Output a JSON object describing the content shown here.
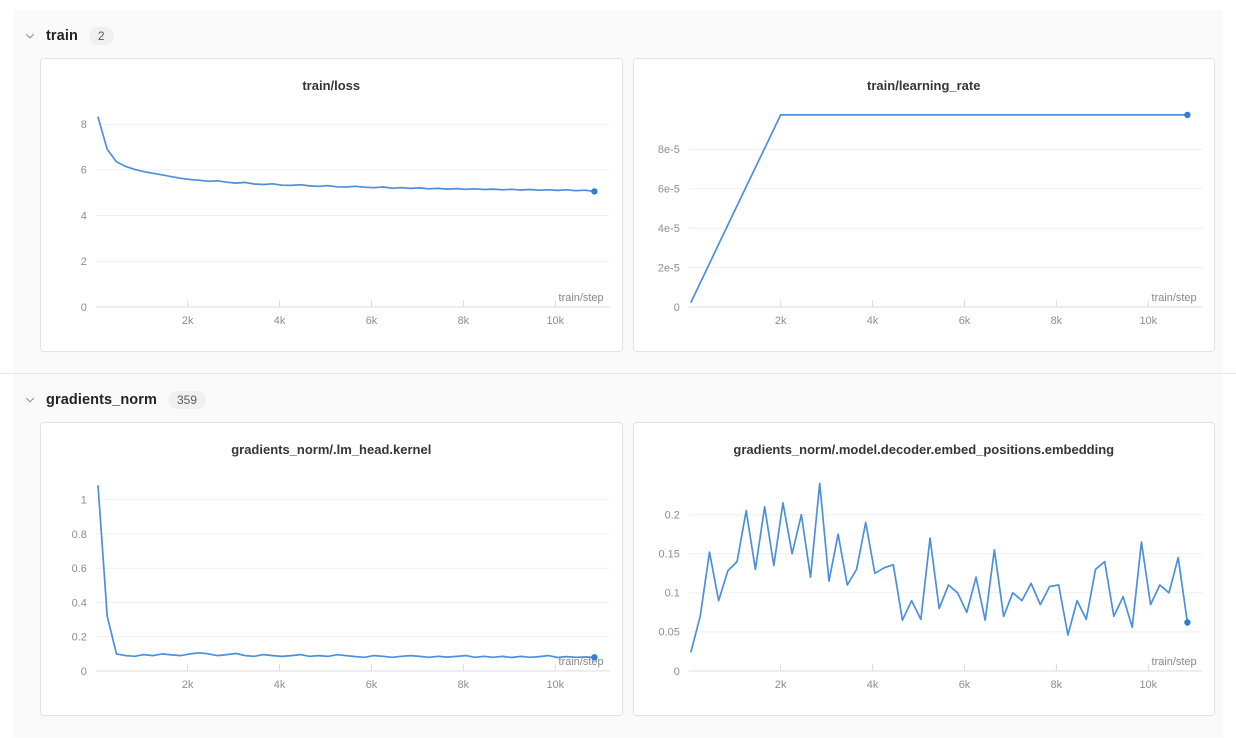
{
  "colors": {
    "line": "#4a90dc",
    "end_dot": "#2e7fd4",
    "section_background": "#fafafa",
    "card_background": "#ffffff"
  },
  "sections": [
    {
      "label": "train",
      "count": "2",
      "charts": [
        0,
        1
      ]
    },
    {
      "label": "gradients_norm",
      "count": "359",
      "charts": [
        2,
        3
      ]
    }
  ],
  "chart_data": [
    {
      "type": "line",
      "title": "train/loss",
      "xlabel": "train/step",
      "xlim": [
        0,
        11050
      ],
      "ylim": [
        0,
        8.62
      ],
      "x_ticks": [
        {
          "value": 2000,
          "label": "2k"
        },
        {
          "value": 4000,
          "label": "4k"
        },
        {
          "value": 6000,
          "label": "6k"
        },
        {
          "value": 8000,
          "label": "8k"
        },
        {
          "value": 10000,
          "label": "10k"
        }
      ],
      "y_ticks": [
        {
          "value": 0,
          "label": "0"
        },
        {
          "value": 2,
          "label": "2"
        },
        {
          "value": 4,
          "label": "4"
        },
        {
          "value": 6,
          "label": "6"
        },
        {
          "value": 8,
          "label": "8"
        }
      ],
      "x_start": 50,
      "x_step": 200,
      "values": [
        8.3,
        6.9,
        6.35,
        6.15,
        6.02,
        5.92,
        5.85,
        5.78,
        5.7,
        5.63,
        5.58,
        5.55,
        5.5,
        5.52,
        5.46,
        5.42,
        5.45,
        5.38,
        5.36,
        5.39,
        5.33,
        5.32,
        5.35,
        5.3,
        5.28,
        5.31,
        5.26,
        5.25,
        5.28,
        5.24,
        5.22,
        5.25,
        5.2,
        5.22,
        5.19,
        5.21,
        5.17,
        5.19,
        5.16,
        5.18,
        5.15,
        5.17,
        5.14,
        5.16,
        5.13,
        5.15,
        5.12,
        5.14,
        5.11,
        5.13,
        5.1,
        5.13,
        5.09,
        5.11,
        5.06
      ],
      "end_dot": true
    },
    {
      "type": "line",
      "title": "train/learning_rate",
      "xlabel": "train/step",
      "xlim": [
        0,
        11050
      ],
      "ylim": [
        0,
        0.0001
      ],
      "x_ticks": [
        {
          "value": 2000,
          "label": "2k"
        },
        {
          "value": 4000,
          "label": "4k"
        },
        {
          "value": 6000,
          "label": "6k"
        },
        {
          "value": 8000,
          "label": "8k"
        },
        {
          "value": 10000,
          "label": "10k"
        }
      ],
      "y_ticks": [
        {
          "value": 0,
          "label": "0"
        },
        {
          "value": 2e-05,
          "label": "2e-5"
        },
        {
          "value": 4e-05,
          "label": "4e-5"
        },
        {
          "value": 6e-05,
          "label": "6e-5"
        },
        {
          "value": 8e-05,
          "label": "8e-5"
        }
      ],
      "x": [
        50,
        1000,
        2000,
        6000,
        10850
      ],
      "y": [
        2.5e-06,
        4.9e-05,
        9.75e-05,
        9.75e-05,
        9.75e-05
      ],
      "end_dot": true
    },
    {
      "type": "line",
      "title": "gradients_norm/.lm_head.kernel",
      "xlabel": "train/step",
      "xlim": [
        0,
        11050
      ],
      "ylim": [
        0,
        1.15
      ],
      "x_ticks": [
        {
          "value": 2000,
          "label": "2k"
        },
        {
          "value": 4000,
          "label": "4k"
        },
        {
          "value": 6000,
          "label": "6k"
        },
        {
          "value": 8000,
          "label": "8k"
        },
        {
          "value": 10000,
          "label": "10k"
        }
      ],
      "y_ticks": [
        {
          "value": 0,
          "label": "0"
        },
        {
          "value": 0.2,
          "label": "0.2"
        },
        {
          "value": 0.4,
          "label": "0.4"
        },
        {
          "value": 0.6,
          "label": "0.6"
        },
        {
          "value": 0.8,
          "label": "0.8"
        },
        {
          "value": 1,
          "label": "1"
        }
      ],
      "x_start": 50,
      "x_step": 200,
      "values": [
        1.08,
        0.32,
        0.1,
        0.09,
        0.086,
        0.096,
        0.09,
        0.1,
        0.094,
        0.09,
        0.1,
        0.106,
        0.1,
        0.09,
        0.096,
        0.102,
        0.09,
        0.086,
        0.096,
        0.09,
        0.085,
        0.09,
        0.096,
        0.086,
        0.09,
        0.085,
        0.095,
        0.09,
        0.084,
        0.08,
        0.09,
        0.086,
        0.08,
        0.086,
        0.09,
        0.085,
        0.08,
        0.086,
        0.081,
        0.085,
        0.09,
        0.08,
        0.086,
        0.08,
        0.085,
        0.079,
        0.085,
        0.08,
        0.084,
        0.09,
        0.079,
        0.084,
        0.08,
        0.082,
        0.08
      ],
      "end_dot": true
    },
    {
      "type": "line",
      "title": "gradients_norm/.model.decoder.embed_positions.embedding",
      "xlabel": "train/step",
      "xlim": [
        0,
        11050
      ],
      "ylim": [
        0,
        0.252
      ],
      "x_ticks": [
        {
          "value": 2000,
          "label": "2k"
        },
        {
          "value": 4000,
          "label": "4k"
        },
        {
          "value": 6000,
          "label": "6k"
        },
        {
          "value": 8000,
          "label": "8k"
        },
        {
          "value": 10000,
          "label": "10k"
        }
      ],
      "y_ticks": [
        {
          "value": 0,
          "label": "0"
        },
        {
          "value": 0.05,
          "label": "0.05"
        },
        {
          "value": 0.1,
          "label": "0.1"
        },
        {
          "value": 0.15,
          "label": "0.15"
        },
        {
          "value": 0.2,
          "label": "0.2"
        }
      ],
      "x_start": 50,
      "x_step": 200,
      "values": [
        0.025,
        0.07,
        0.152,
        0.09,
        0.128,
        0.14,
        0.205,
        0.13,
        0.21,
        0.135,
        0.215,
        0.15,
        0.2,
        0.12,
        0.24,
        0.115,
        0.175,
        0.11,
        0.13,
        0.19,
        0.125,
        0.132,
        0.136,
        0.065,
        0.09,
        0.066,
        0.17,
        0.08,
        0.11,
        0.1,
        0.075,
        0.12,
        0.065,
        0.155,
        0.07,
        0.1,
        0.09,
        0.112,
        0.085,
        0.108,
        0.11,
        0.046,
        0.09,
        0.066,
        0.13,
        0.14,
        0.07,
        0.095,
        0.056,
        0.165,
        0.085,
        0.11,
        0.1,
        0.145,
        0.062
      ],
      "end_dot": true
    }
  ]
}
